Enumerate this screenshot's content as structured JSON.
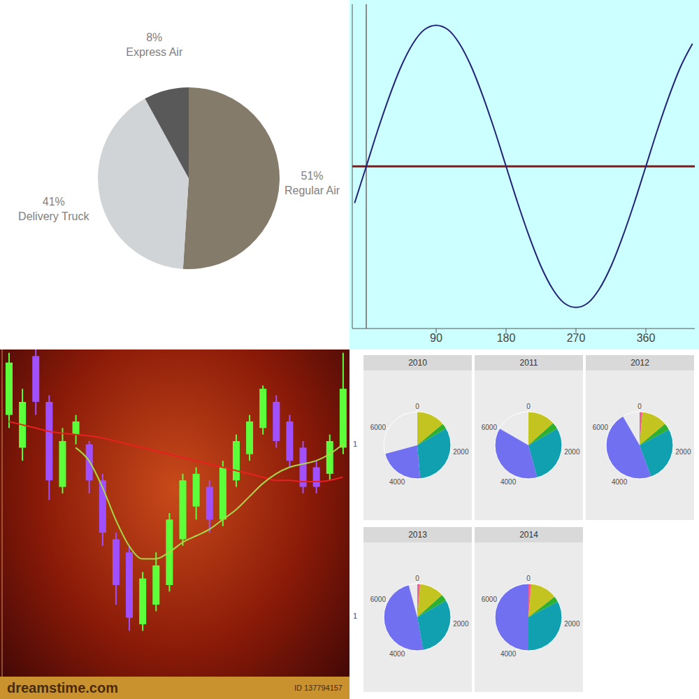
{
  "chart_data": [
    {
      "type": "pie",
      "categories": [
        "Regular Air",
        "Delivery Truck",
        "Express Air"
      ],
      "values": [
        51,
        41,
        8
      ],
      "value_labels": [
        "51%",
        "41%",
        "8%"
      ],
      "colors": [
        "#857b6b",
        "#d1d4d6",
        "#595959"
      ],
      "data_labels": true
    },
    {
      "type": "line",
      "x": [
        -15,
        0,
        15,
        30,
        45,
        60,
        75,
        90,
        105,
        120,
        135,
        150,
        165,
        180,
        195,
        210,
        225,
        240,
        255,
        270,
        285,
        300,
        315,
        330,
        345,
        360,
        375,
        390,
        405,
        420
      ],
      "values": [
        -0.26,
        0,
        0.26,
        0.5,
        0.71,
        0.87,
        0.97,
        1,
        0.97,
        0.87,
        0.71,
        0.5,
        0.26,
        0,
        -0.26,
        -0.5,
        -0.71,
        -0.87,
        -0.97,
        -1,
        -0.97,
        -0.87,
        -0.71,
        -0.5,
        -0.26,
        0,
        0.26,
        0.5,
        0.71,
        0.87
      ],
      "color": "#23237a",
      "xlim": [
        -18,
        423
      ],
      "xticks": [
        90,
        180,
        270,
        360
      ],
      "ylim": [
        -1.15,
        1.15
      ],
      "yticks": [],
      "tick_labels": "x"
    },
    {
      "type": "candlestick",
      "categories": [
        null,
        null,
        null,
        null,
        null,
        null,
        null,
        null,
        null,
        null,
        null,
        null,
        null,
        null,
        null,
        null,
        null,
        null,
        null,
        null,
        null,
        null,
        null,
        null,
        null,
        null
      ],
      "open": [
        400,
        350,
        490,
        420,
        290,
        370,
        355,
        300,
        210,
        190,
        80,
        110,
        140,
        210,
        260,
        290,
        240,
        300,
        340,
        380,
        420,
        390,
        350,
        320,
        310,
        350
      ],
      "close": [
        480,
        420,
        420,
        300,
        360,
        390,
        300,
        220,
        140,
        90,
        150,
        170,
        240,
        300,
        310,
        240,
        320,
        360,
        390,
        440,
        360,
        330,
        290,
        290,
        360,
        440
      ],
      "high": [
        495,
        440,
        500,
        430,
        380,
        400,
        360,
        310,
        220,
        200,
        160,
        190,
        250,
        310,
        320,
        300,
        330,
        370,
        400,
        445,
        430,
        400,
        360,
        330,
        370,
        495
      ],
      "low": [
        380,
        330,
        400,
        270,
        280,
        355,
        280,
        200,
        110,
        70,
        70,
        100,
        130,
        200,
        240,
        220,
        230,
        290,
        330,
        370,
        350,
        320,
        280,
        280,
        300,
        340
      ],
      "colors": [
        "#5dff3a",
        "#5dff3a",
        "#a050ff",
        "#a050ff",
        "#5dff3a",
        "#5dff3a",
        "#a050ff",
        "#a050ff",
        "#a050ff",
        "#a050ff",
        "#5dff3a",
        "#5dff3a",
        "#5dff3a",
        "#5dff3a",
        "#5dff3a",
        "#a050ff",
        "#5dff3a",
        "#5dff3a",
        "#5dff3a",
        "#5dff3a",
        "#a050ff",
        "#a050ff",
        "#a050ff",
        "#a050ff",
        "#5dff3a",
        "#5dff3a"
      ],
      "series": [
        {
          "type": "line",
          "color": "#e82020",
          "values": [
            390,
            385,
            380,
            375,
            372,
            370,
            368,
            365,
            360,
            355,
            350,
            345,
            340,
            335,
            330,
            325,
            320,
            315,
            310,
            305,
            300,
            300,
            298,
            298,
            300,
            305
          ]
        },
        {
          "type": "line",
          "color": "#a8d848",
          "values": [
            null,
            null,
            null,
            null,
            null,
            350,
            330,
            290,
            240,
            200,
            180,
            180,
            190,
            205,
            215,
            225,
            240,
            255,
            275,
            295,
            310,
            320,
            325,
            330,
            340,
            355
          ]
        }
      ],
      "ylim": [
        0,
        500
      ],
      "yticks": [],
      "tick_labels": false,
      "annotations": [
        "dreamstime.com",
        "ID 137794157"
      ]
    },
    {
      "type": "pie",
      "categories": [
        "2010",
        "2011",
        "2012",
        "2013",
        "2014"
      ],
      "series": [
        {
          "color": "#f06090",
          "values": [
            0,
            0,
            100,
            100,
            100
          ]
        },
        {
          "color": "#c4c420",
          "values": [
            1000,
            960,
            900,
            860,
            940
          ]
        },
        {
          "color": "#30b030",
          "values": [
            200,
            240,
            240,
            240,
            200
          ]
        },
        {
          "color": "#10a0b0",
          "values": [
            2300,
            2100,
            1960,
            2200,
            2360
          ]
        },
        {
          "color": "#7070f0",
          "values": [
            1600,
            2700,
            3400,
            3500,
            3600
          ]
        }
      ],
      "xlim": [
        0,
        7200
      ],
      "xticks": [
        0,
        2000,
        4000,
        6000
      ],
      "y_categories": [
        "1"
      ],
      "stacked": true
    }
  ]
}
